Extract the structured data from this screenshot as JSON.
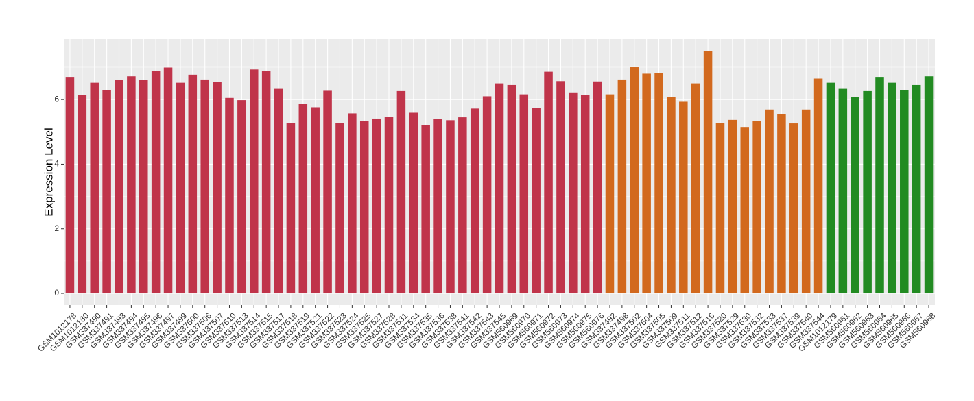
{
  "chart_data": {
    "type": "bar",
    "y_label": "Expression Level",
    "ylim": [
      -0.36,
      7.87
    ],
    "yticks": [
      0,
      2,
      4,
      6
    ],
    "grid": true,
    "series": [
      {
        "color": "#c0344a",
        "categories": [
          "GSM1012178",
          "GSM1012180",
          "GSM337490",
          "GSM337491",
          "GSM337493",
          "GSM337494",
          "GSM337495",
          "GSM337496",
          "GSM337497",
          "GSM337499",
          "GSM337500",
          "GSM337506",
          "GSM337507",
          "GSM337510",
          "GSM337513",
          "GSM337514",
          "GSM337515",
          "GSM337517",
          "GSM337518",
          "GSM337519",
          "GSM337521",
          "GSM337522",
          "GSM337523",
          "GSM337524",
          "GSM337525",
          "GSM337527",
          "GSM337528",
          "GSM337531",
          "GSM337534",
          "GSM337535",
          "GSM337536",
          "GSM337538",
          "GSM337541",
          "GSM337542",
          "GSM337543",
          "GSM337545",
          "GSM560969",
          "GSM560970",
          "GSM560971",
          "GSM560972",
          "GSM560973",
          "GSM560974",
          "GSM560975",
          "GSM560976"
        ],
        "values": [
          6.68,
          6.15,
          6.52,
          6.28,
          6.6,
          6.72,
          6.6,
          6.88,
          6.99,
          6.52,
          6.77,
          6.62,
          6.54,
          6.05,
          5.98,
          6.93,
          6.89,
          6.33,
          5.27,
          5.87,
          5.76,
          6.27,
          5.28,
          5.57,
          5.34,
          5.41,
          5.47,
          6.26,
          5.59,
          5.21,
          5.39,
          5.36,
          5.45,
          5.72,
          6.1,
          6.5,
          6.45,
          6.16,
          5.74,
          6.86,
          6.57,
          6.22,
          6.14,
          6.56
        ]
      },
      {
        "color": "#d2691e",
        "categories": [
          "GSM337492",
          "GSM337498",
          "GSM337502",
          "GSM337504",
          "GSM337505",
          "GSM337509",
          "GSM337511",
          "GSM337512",
          "GSM337516",
          "GSM337520",
          "GSM337529",
          "GSM337530",
          "GSM337532",
          "GSM337533",
          "GSM337537",
          "GSM337539",
          "GSM337540",
          "GSM337544"
        ],
        "values": [
          6.16,
          6.62,
          7.0,
          6.8,
          6.81,
          6.08,
          5.93,
          6.5,
          7.5,
          5.27,
          5.37,
          5.13,
          5.34,
          5.69,
          5.54,
          5.26,
          5.69,
          6.65
        ]
      },
      {
        "color": "#228b22",
        "categories": [
          "GSM1012179",
          "GSM560961",
          "GSM560962",
          "GSM560963",
          "GSM560964",
          "GSM560965",
          "GSM560966",
          "GSM560967",
          "GSM560968"
        ],
        "values": [
          6.52,
          6.33,
          6.08,
          6.26,
          6.68,
          6.52,
          6.29,
          6.45,
          6.72
        ]
      }
    ]
  }
}
